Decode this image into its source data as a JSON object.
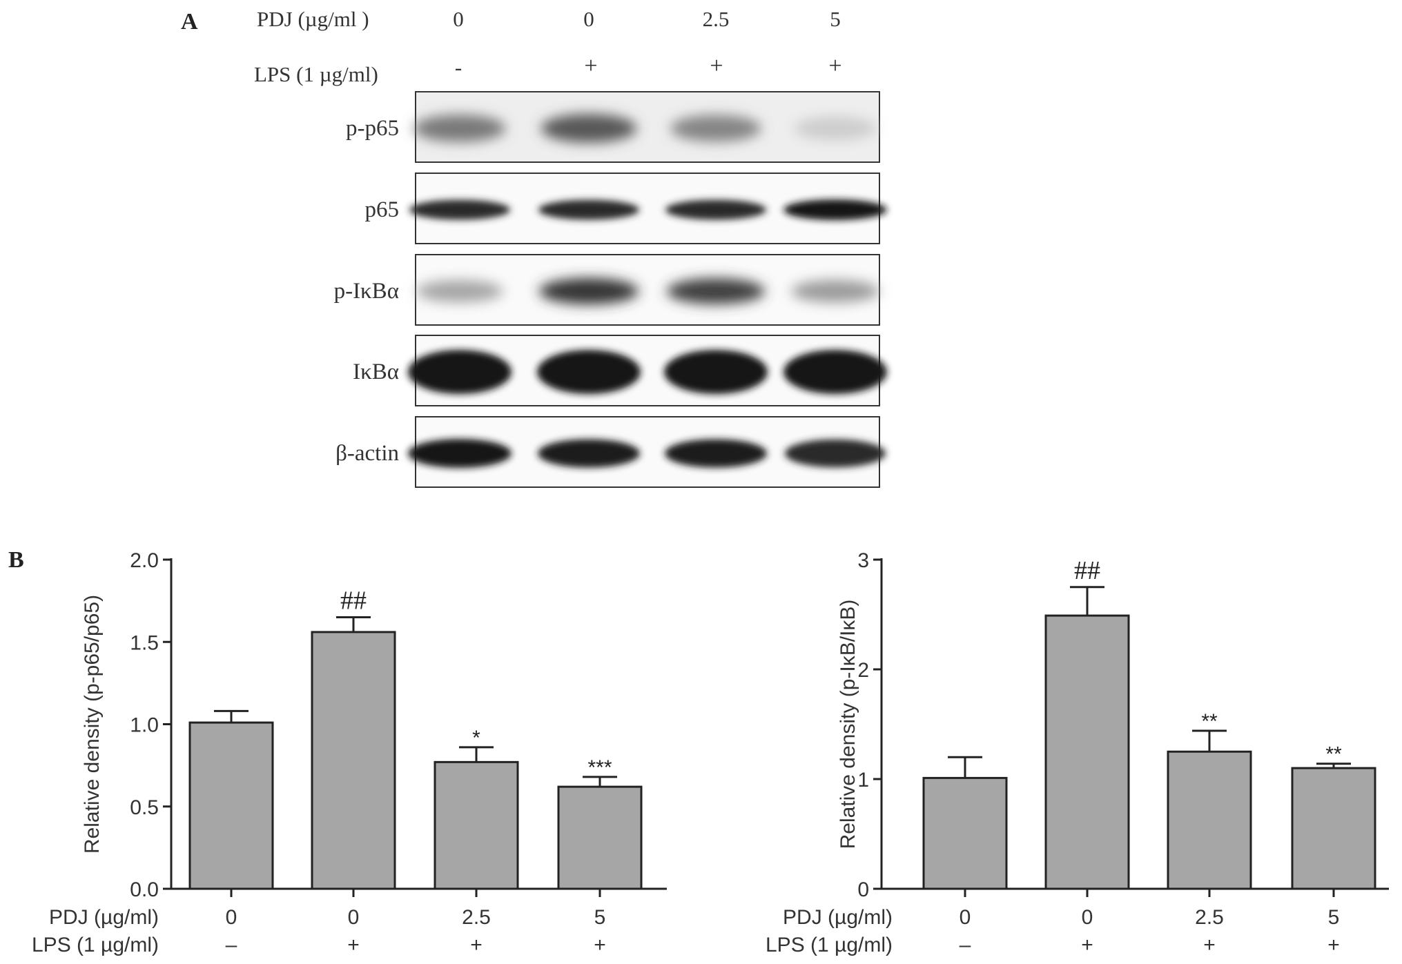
{
  "panel_a": {
    "panel_label": "A",
    "header_rows": [
      {
        "label": "PDJ (µg/ml )",
        "values": [
          "0",
          "0",
          "2.5",
          "5"
        ]
      },
      {
        "label": "LPS (1 µg/ml)",
        "values": [
          "-",
          "+",
          "+",
          "+"
        ]
      }
    ],
    "blots": [
      {
        "label": "p-p65",
        "band_intensity": [
          0.55,
          0.7,
          0.5,
          0.18
        ]
      },
      {
        "label": "p65",
        "band_intensity": [
          0.9,
          0.9,
          0.9,
          1.0
        ]
      },
      {
        "label": "p-IκBα",
        "band_intensity": [
          0.35,
          0.85,
          0.8,
          0.4
        ]
      },
      {
        "label": "IκBα",
        "band_intensity": [
          1.0,
          1.0,
          1.0,
          1.0
        ]
      },
      {
        "label": "β-actin",
        "band_intensity": [
          1.0,
          0.95,
          0.95,
          0.9
        ]
      }
    ]
  },
  "panel_b": {
    "panel_label": "B",
    "row_labels": [
      "PDJ (µg/ml)",
      "LPS (1 µg/ml)"
    ]
  },
  "chart_data": [
    {
      "type": "bar",
      "ylabel": "Relative density (p-p65/p65)",
      "ylim": [
        0,
        2.0
      ],
      "yticks": [
        "0.0",
        "0.5",
        "1.0",
        "1.5",
        "2.0"
      ],
      "categories": [
        {
          "pdj": "0",
          "lps": "–"
        },
        {
          "pdj": "0",
          "lps": "+"
        },
        {
          "pdj": "2.5",
          "lps": "+"
        },
        {
          "pdj": "5",
          "lps": "+"
        }
      ],
      "values": [
        1.01,
        1.56,
        0.77,
        0.62
      ],
      "errors": [
        0.07,
        0.09,
        0.09,
        0.06
      ],
      "annotations": [
        "",
        "##",
        "*",
        "***"
      ],
      "bar_color": "#a6a6a6"
    },
    {
      "type": "bar",
      "ylabel": "Relative density (p-IκB/IκB)",
      "ylim": [
        0,
        3
      ],
      "yticks": [
        "0",
        "1",
        "2",
        "3"
      ],
      "categories": [
        {
          "pdj": "0",
          "lps": "–"
        },
        {
          "pdj": "0",
          "lps": "+"
        },
        {
          "pdj": "2.5",
          "lps": "+"
        },
        {
          "pdj": "5",
          "lps": "+"
        }
      ],
      "values": [
        1.01,
        2.49,
        1.25,
        1.1
      ],
      "errors": [
        0.19,
        0.26,
        0.19,
        0.04
      ],
      "annotations": [
        "",
        "##",
        "**",
        "**"
      ],
      "bar_color": "#a6a6a6"
    }
  ]
}
